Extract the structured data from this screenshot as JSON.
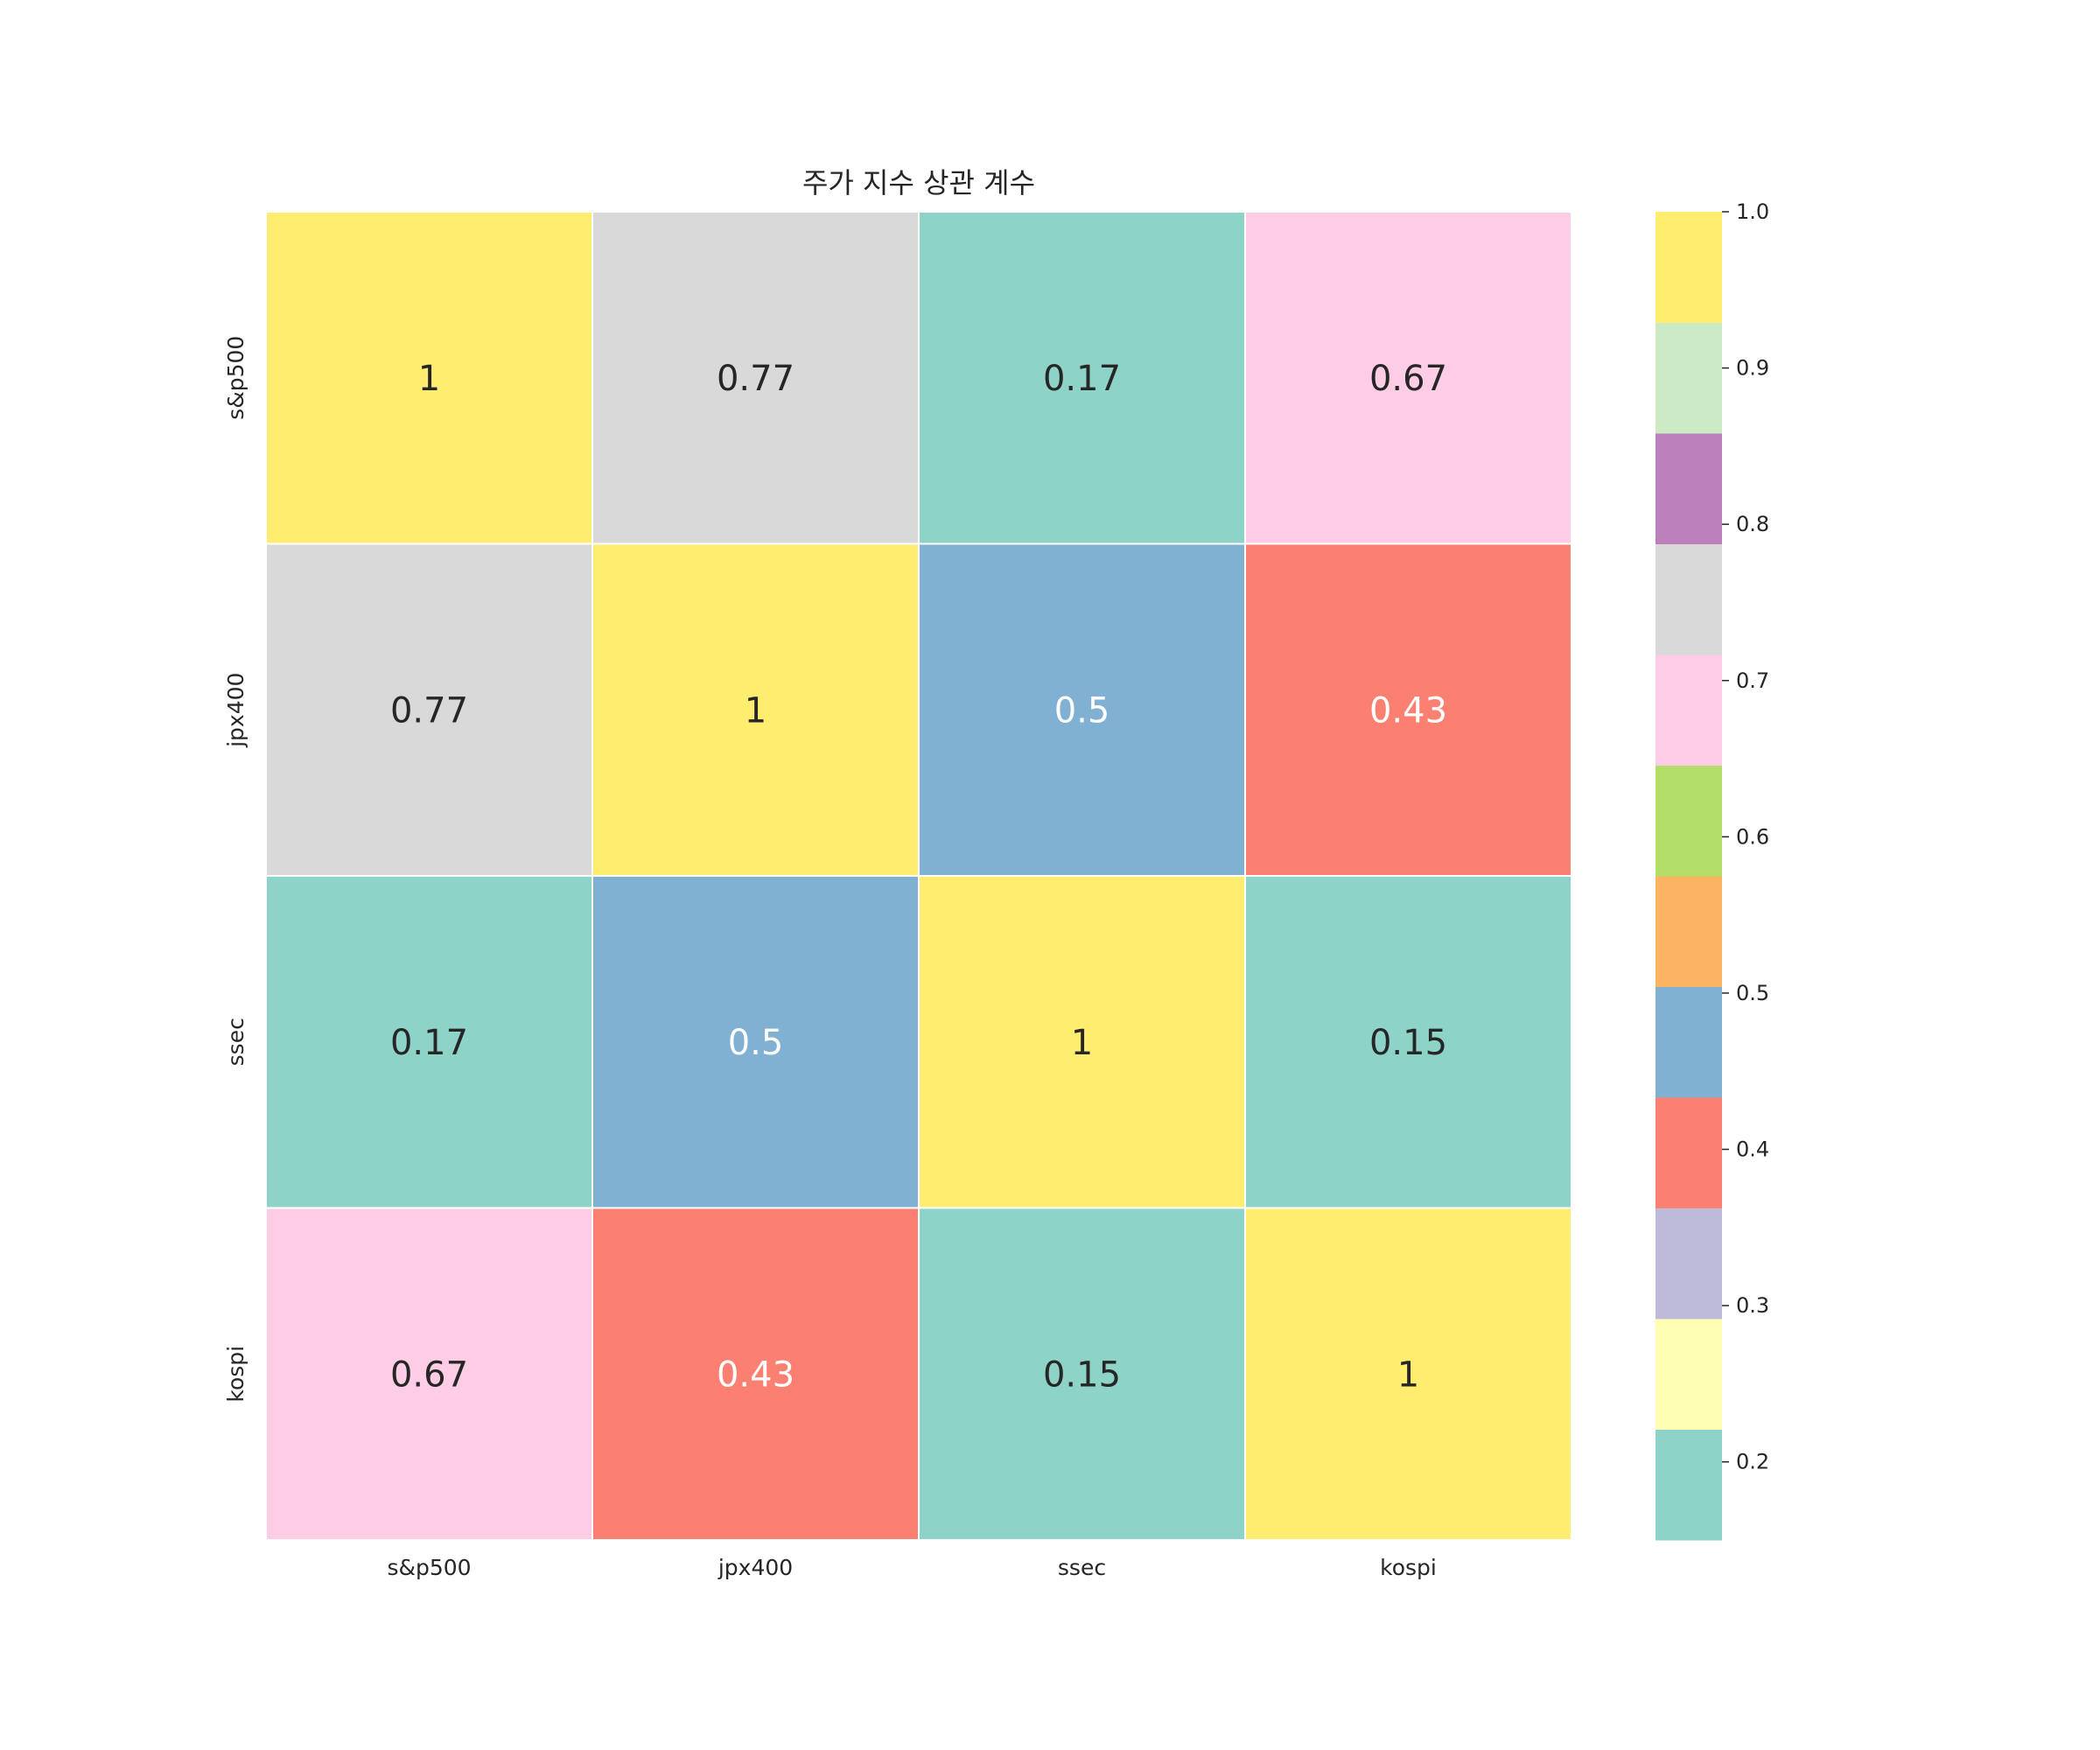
{
  "chart_data": {
    "type": "heatmap",
    "title": "주가 지수 상관 계수",
    "row_labels": [
      "s&p500",
      "jpx400",
      "ssec",
      "kospi"
    ],
    "col_labels": [
      "s&p500",
      "jpx400",
      "ssec",
      "kospi"
    ],
    "values": [
      [
        1.0,
        0.77,
        0.17,
        0.67
      ],
      [
        0.77,
        1.0,
        0.5,
        0.43
      ],
      [
        0.17,
        0.5,
        1.0,
        0.15
      ],
      [
        0.67,
        0.43,
        0.15,
        1.0
      ]
    ],
    "cell_labels": [
      [
        "1",
        "0.77",
        "0.17",
        "0.67"
      ],
      [
        "0.77",
        "1",
        "0.5",
        "0.43"
      ],
      [
        "0.17",
        "0.5",
        "1",
        "0.15"
      ],
      [
        "0.67",
        "0.43",
        "0.15",
        "1"
      ]
    ],
    "colorbar": {
      "vmin": 0.15,
      "vmax": 1.0,
      "ticks": [
        0.2,
        0.3,
        0.4,
        0.5,
        0.6,
        0.7,
        0.8,
        0.9,
        1.0
      ],
      "tick_labels": [
        "0.2",
        "0.3",
        "0.4",
        "0.5",
        "0.6",
        "0.7",
        "0.8",
        "0.9",
        "1.0"
      ],
      "colors": [
        "#8dd3c7",
        "#ffffb3",
        "#bebada",
        "#fb8072",
        "#80b1d3",
        "#fdb462",
        "#b3de69",
        "#fccde5",
        "#d9d9d9",
        "#bc80bd",
        "#ccebc5",
        "#ffed6f"
      ]
    },
    "light_text_cells": [
      "0.5",
      "0.43"
    ],
    "dark_text_color": "#262626",
    "light_text_color": "#ffffff"
  }
}
